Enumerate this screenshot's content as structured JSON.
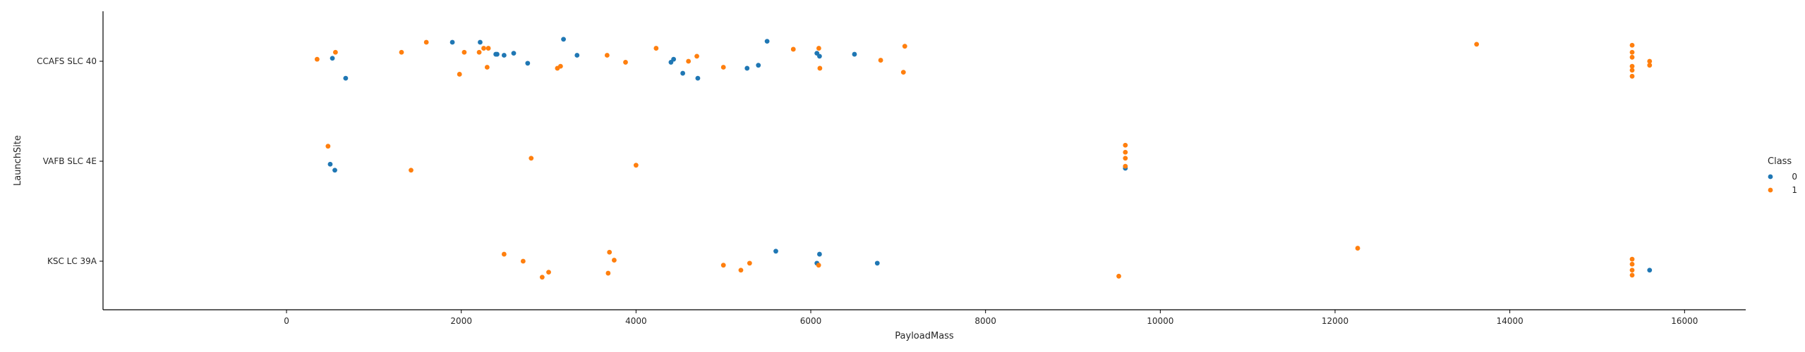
{
  "chart_data": {
    "type": "scatter",
    "title": "",
    "xlabel": "PayloadMass",
    "ylabel": "LaunchSite",
    "xlim": [
      -2100,
      16700
    ],
    "x_ticks": [
      0,
      2000,
      4000,
      6000,
      8000,
      10000,
      12000,
      14000,
      16000
    ],
    "categories": [
      "CCAFS SLC 40",
      "VAFB SLC 4E",
      "KSC LC 39A"
    ],
    "grid": false,
    "legend": {
      "title": "Class",
      "placement": "right"
    },
    "series": [
      {
        "name": "0",
        "color": "#1f77b4",
        "points": [
          {
            "x": 525,
            "y": "CCAFS SLC 40",
            "j": -0.03
          },
          {
            "x": 677,
            "y": "CCAFS SLC 40",
            "j": 0.17
          },
          {
            "x": 1898,
            "y": "CCAFS SLC 40",
            "j": -0.19
          },
          {
            "x": 2216,
            "y": "CCAFS SLC 40",
            "j": -0.19
          },
          {
            "x": 2395,
            "y": "CCAFS SLC 40",
            "j": -0.07
          },
          {
            "x": 2410,
            "y": "CCAFS SLC 40",
            "j": -0.07
          },
          {
            "x": 2490,
            "y": "CCAFS SLC 40",
            "j": -0.06
          },
          {
            "x": 2600,
            "y": "CCAFS SLC 40",
            "j": -0.08
          },
          {
            "x": 2760,
            "y": "CCAFS SLC 40",
            "j": 0.02
          },
          {
            "x": 3170,
            "y": "CCAFS SLC 40",
            "j": -0.22
          },
          {
            "x": 3325,
            "y": "CCAFS SLC 40",
            "j": -0.06
          },
          {
            "x": 4400,
            "y": "CCAFS SLC 40",
            "j": 0.01
          },
          {
            "x": 4430,
            "y": "CCAFS SLC 40",
            "j": -0.02
          },
          {
            "x": 4535,
            "y": "CCAFS SLC 40",
            "j": 0.12
          },
          {
            "x": 4707,
            "y": "CCAFS SLC 40",
            "j": 0.17
          },
          {
            "x": 5271,
            "y": "CCAFS SLC 40",
            "j": 0.07
          },
          {
            "x": 5400,
            "y": "CCAFS SLC 40",
            "j": 0.04
          },
          {
            "x": 5500,
            "y": "CCAFS SLC 40",
            "j": -0.2
          },
          {
            "x": 6070,
            "y": "CCAFS SLC 40",
            "j": -0.08
          },
          {
            "x": 6100,
            "y": "CCAFS SLC 40",
            "j": -0.05
          },
          {
            "x": 6500,
            "y": "CCAFS SLC 40",
            "j": -0.07
          },
          {
            "x": 500,
            "y": "VAFB SLC 4E",
            "j": 0.03
          },
          {
            "x": 553,
            "y": "VAFB SLC 4E",
            "j": 0.09
          },
          {
            "x": 9600,
            "y": "VAFB SLC 4E",
            "j": 0.07
          },
          {
            "x": 5600,
            "y": "KSC LC 39A",
            "j": -0.1
          },
          {
            "x": 6070,
            "y": "KSC LC 39A",
            "j": 0.02
          },
          {
            "x": 6100,
            "y": "KSC LC 39A",
            "j": -0.07
          },
          {
            "x": 6761,
            "y": "KSC LC 39A",
            "j": 0.02
          },
          {
            "x": 15600,
            "y": "KSC LC 39A",
            "j": 0.09
          }
        ]
      },
      {
        "name": "1",
        "color": "#ff7f0e",
        "points": [
          {
            "x": 350,
            "y": "CCAFS SLC 40",
            "j": -0.02
          },
          {
            "x": 560,
            "y": "CCAFS SLC 40",
            "j": -0.09
          },
          {
            "x": 1316,
            "y": "CCAFS SLC 40",
            "j": -0.09
          },
          {
            "x": 1600,
            "y": "CCAFS SLC 40",
            "j": -0.19
          },
          {
            "x": 1980,
            "y": "CCAFS SLC 40",
            "j": 0.13
          },
          {
            "x": 2034,
            "y": "CCAFS SLC 40",
            "j": -0.09
          },
          {
            "x": 2205,
            "y": "CCAFS SLC 40",
            "j": -0.09
          },
          {
            "x": 2257,
            "y": "CCAFS SLC 40",
            "j": -0.13
          },
          {
            "x": 2296,
            "y": "CCAFS SLC 40",
            "j": 0.06
          },
          {
            "x": 2310,
            "y": "CCAFS SLC 40",
            "j": -0.13
          },
          {
            "x": 3100,
            "y": "CCAFS SLC 40",
            "j": 0.07
          },
          {
            "x": 3136,
            "y": "CCAFS SLC 40",
            "j": 0.05
          },
          {
            "x": 3669,
            "y": "CCAFS SLC 40",
            "j": -0.06
          },
          {
            "x": 3880,
            "y": "CCAFS SLC 40",
            "j": 0.01
          },
          {
            "x": 4230,
            "y": "CCAFS SLC 40",
            "j": -0.13
          },
          {
            "x": 4600,
            "y": "CCAFS SLC 40",
            "j": 0.0
          },
          {
            "x": 4696,
            "y": "CCAFS SLC 40",
            "j": -0.05
          },
          {
            "x": 5000,
            "y": "CCAFS SLC 40",
            "j": 0.06
          },
          {
            "x": 5800,
            "y": "CCAFS SLC 40",
            "j": -0.12
          },
          {
            "x": 6092,
            "y": "CCAFS SLC 40",
            "j": -0.13
          },
          {
            "x": 6104,
            "y": "CCAFS SLC 40",
            "j": 0.07
          },
          {
            "x": 6800,
            "y": "CCAFS SLC 40",
            "j": -0.01
          },
          {
            "x": 7060,
            "y": "CCAFS SLC 40",
            "j": 0.11
          },
          {
            "x": 7076,
            "y": "CCAFS SLC 40",
            "j": -0.15
          },
          {
            "x": 13620,
            "y": "CCAFS SLC 40",
            "j": -0.17
          },
          {
            "x": 15400,
            "y": "CCAFS SLC 40",
            "j": -0.16
          },
          {
            "x": 15400,
            "y": "CCAFS SLC 40",
            "j": -0.09
          },
          {
            "x": 15400,
            "y": "CCAFS SLC 40",
            "j": -0.04
          },
          {
            "x": 15400,
            "y": "CCAFS SLC 40",
            "j": 0.05
          },
          {
            "x": 15400,
            "y": "CCAFS SLC 40",
            "j": 0.09
          },
          {
            "x": 15400,
            "y": "CCAFS SLC 40",
            "j": 0.15
          },
          {
            "x": 15600,
            "y": "CCAFS SLC 40",
            "j": 0.0
          },
          {
            "x": 15600,
            "y": "CCAFS SLC 40",
            "j": 0.04
          },
          {
            "x": 475,
            "y": "VAFB SLC 4E",
            "j": -0.15
          },
          {
            "x": 1425,
            "y": "VAFB SLC 4E",
            "j": 0.09
          },
          {
            "x": 2800,
            "y": "VAFB SLC 4E",
            "j": -0.03
          },
          {
            "x": 4000,
            "y": "VAFB SLC 4E",
            "j": 0.04
          },
          {
            "x": 9600,
            "y": "VAFB SLC 4E",
            "j": -0.16
          },
          {
            "x": 9600,
            "y": "VAFB SLC 4E",
            "j": -0.09
          },
          {
            "x": 9600,
            "y": "VAFB SLC 4E",
            "j": -0.03
          },
          {
            "x": 9600,
            "y": "VAFB SLC 4E",
            "j": 0.05
          },
          {
            "x": 2490,
            "y": "KSC LC 39A",
            "j": -0.07
          },
          {
            "x": 2708,
            "y": "KSC LC 39A",
            "j": 0.0
          },
          {
            "x": 2926,
            "y": "KSC LC 39A",
            "j": 0.16
          },
          {
            "x": 3000,
            "y": "KSC LC 39A",
            "j": 0.11
          },
          {
            "x": 3681,
            "y": "KSC LC 39A",
            "j": 0.12
          },
          {
            "x": 3696,
            "y": "KSC LC 39A",
            "j": -0.09
          },
          {
            "x": 3750,
            "y": "KSC LC 39A",
            "j": -0.01
          },
          {
            "x": 5000,
            "y": "KSC LC 39A",
            "j": 0.04
          },
          {
            "x": 5200,
            "y": "KSC LC 39A",
            "j": 0.09
          },
          {
            "x": 5300,
            "y": "KSC LC 39A",
            "j": 0.02
          },
          {
            "x": 6090,
            "y": "KSC LC 39A",
            "j": 0.04
          },
          {
            "x": 9525,
            "y": "KSC LC 39A",
            "j": 0.15
          },
          {
            "x": 12259,
            "y": "KSC LC 39A",
            "j": -0.13
          },
          {
            "x": 15400,
            "y": "KSC LC 39A",
            "j": -0.02
          },
          {
            "x": 15400,
            "y": "KSC LC 39A",
            "j": 0.03
          },
          {
            "x": 15400,
            "y": "KSC LC 39A",
            "j": 0.09
          },
          {
            "x": 15400,
            "y": "KSC LC 39A",
            "j": 0.14
          }
        ]
      }
    ]
  }
}
